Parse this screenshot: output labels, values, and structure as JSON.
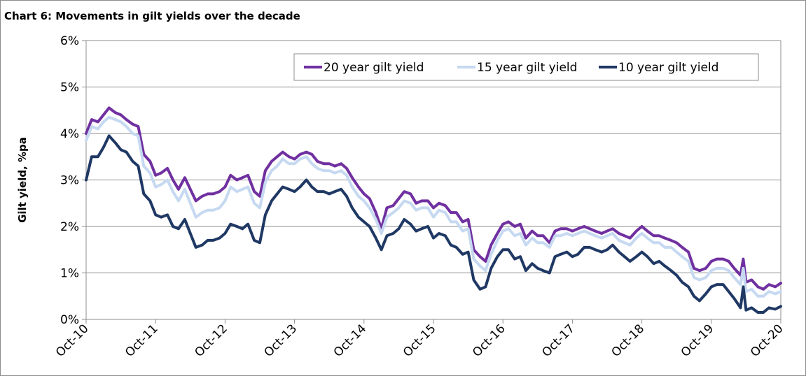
{
  "chart_data": {
    "type": "line",
    "title": "Chart 6: Movements in gilt yields over the decade",
    "xlabel": "",
    "ylabel": "Gilt yield, %pa",
    "ylim": [
      0,
      6
    ],
    "yticks": [
      "0%",
      "1%",
      "2%",
      "3%",
      "4%",
      "5%",
      "6%"
    ],
    "yticks_values": [
      0,
      1,
      2,
      3,
      4,
      5,
      6
    ],
    "xlim": [
      2010.75,
      2020.75
    ],
    "xticks": [
      "Oct-10",
      "Oct-11",
      "Oct-12",
      "Oct-13",
      "Oct-14",
      "Oct-15",
      "Oct-16",
      "Oct-17",
      "Oct-18",
      "Oct-19",
      "Oct-20"
    ],
    "xticks_values": [
      2010.75,
      2011.75,
      2012.75,
      2013.75,
      2014.75,
      2015.75,
      2016.75,
      2017.75,
      2018.75,
      2019.75,
      2020.75
    ],
    "grid": "horizontal",
    "legend_position": "top-right",
    "series": [
      {
        "name": "20 year gilt yield",
        "color": "#7030a0",
        "x": [
          2010.75,
          2010.83,
          2010.92,
          2011.0,
          2011.08,
          2011.17,
          2011.25,
          2011.33,
          2011.42,
          2011.5,
          2011.58,
          2011.67,
          2011.75,
          2011.83,
          2011.92,
          2012.0,
          2012.08,
          2012.17,
          2012.25,
          2012.33,
          2012.42,
          2012.5,
          2012.58,
          2012.67,
          2012.75,
          2012.83,
          2012.92,
          2013.0,
          2013.08,
          2013.17,
          2013.25,
          2013.33,
          2013.42,
          2013.5,
          2013.58,
          2013.67,
          2013.75,
          2013.83,
          2013.92,
          2014.0,
          2014.08,
          2014.17,
          2014.25,
          2014.33,
          2014.42,
          2014.5,
          2014.58,
          2014.67,
          2014.75,
          2014.83,
          2014.92,
          2015.0,
          2015.08,
          2015.17,
          2015.25,
          2015.33,
          2015.42,
          2015.5,
          2015.58,
          2015.67,
          2015.75,
          2015.83,
          2015.92,
          2016.0,
          2016.08,
          2016.17,
          2016.25,
          2016.33,
          2016.42,
          2016.5,
          2016.58,
          2016.67,
          2016.75,
          2016.83,
          2016.92,
          2017.0,
          2017.08,
          2017.17,
          2017.25,
          2017.33,
          2017.42,
          2017.5,
          2017.58,
          2017.67,
          2017.75,
          2017.83,
          2017.92,
          2018.0,
          2018.08,
          2018.17,
          2018.25,
          2018.33,
          2018.42,
          2018.5,
          2018.58,
          2018.67,
          2018.75,
          2018.83,
          2018.92,
          2019.0,
          2019.08,
          2019.17,
          2019.25,
          2019.33,
          2019.42,
          2019.5,
          2019.58,
          2019.67,
          2019.75,
          2019.83,
          2019.92,
          2020.0,
          2020.08,
          2020.17,
          2020.21,
          2020.25,
          2020.33,
          2020.42,
          2020.5,
          2020.58,
          2020.67,
          2020.75
        ],
        "values": [
          4.0,
          4.3,
          4.25,
          4.4,
          4.55,
          4.45,
          4.4,
          4.3,
          4.2,
          4.15,
          3.55,
          3.4,
          3.1,
          3.15,
          3.25,
          3.0,
          2.8,
          3.05,
          2.8,
          2.55,
          2.65,
          2.7,
          2.7,
          2.75,
          2.85,
          3.1,
          3.0,
          3.05,
          3.1,
          2.75,
          2.65,
          3.2,
          3.4,
          3.5,
          3.6,
          3.5,
          3.45,
          3.55,
          3.6,
          3.55,
          3.4,
          3.35,
          3.35,
          3.3,
          3.35,
          3.25,
          3.05,
          2.85,
          2.7,
          2.6,
          2.3,
          1.95,
          2.4,
          2.45,
          2.6,
          2.75,
          2.7,
          2.5,
          2.55,
          2.55,
          2.4,
          2.5,
          2.45,
          2.3,
          2.3,
          2.1,
          2.15,
          1.5,
          1.35,
          1.25,
          1.6,
          1.85,
          2.05,
          2.1,
          2.0,
          2.05,
          1.75,
          1.9,
          1.8,
          1.8,
          1.65,
          1.9,
          1.95,
          1.95,
          1.9,
          1.95,
          2.0,
          1.95,
          1.9,
          1.85,
          1.9,
          1.95,
          1.85,
          1.8,
          1.75,
          1.9,
          2.0,
          1.9,
          1.8,
          1.8,
          1.75,
          1.7,
          1.65,
          1.55,
          1.45,
          1.1,
          1.05,
          1.1,
          1.25,
          1.3,
          1.3,
          1.25,
          1.1,
          0.95,
          1.3,
          0.8,
          0.85,
          0.7,
          0.65,
          0.75,
          0.7,
          0.78
        ]
      },
      {
        "name": "15 year gilt yield",
        "color": "#c6d9f1",
        "x": [
          2010.75,
          2010.83,
          2010.92,
          2011.0,
          2011.08,
          2011.17,
          2011.25,
          2011.33,
          2011.42,
          2011.5,
          2011.58,
          2011.67,
          2011.75,
          2011.83,
          2011.92,
          2012.0,
          2012.08,
          2012.17,
          2012.25,
          2012.33,
          2012.42,
          2012.5,
          2012.58,
          2012.67,
          2012.75,
          2012.83,
          2012.92,
          2013.0,
          2013.08,
          2013.17,
          2013.25,
          2013.33,
          2013.42,
          2013.5,
          2013.58,
          2013.67,
          2013.75,
          2013.83,
          2013.92,
          2014.0,
          2014.08,
          2014.17,
          2014.25,
          2014.33,
          2014.42,
          2014.5,
          2014.58,
          2014.67,
          2014.75,
          2014.83,
          2014.92,
          2015.0,
          2015.08,
          2015.17,
          2015.25,
          2015.33,
          2015.42,
          2015.5,
          2015.58,
          2015.67,
          2015.75,
          2015.83,
          2015.92,
          2016.0,
          2016.08,
          2016.17,
          2016.25,
          2016.33,
          2016.42,
          2016.5,
          2016.58,
          2016.67,
          2016.75,
          2016.83,
          2016.92,
          2017.0,
          2017.08,
          2017.17,
          2017.25,
          2017.33,
          2017.42,
          2017.5,
          2017.58,
          2017.67,
          2017.75,
          2017.83,
          2017.92,
          2018.0,
          2018.08,
          2018.17,
          2018.25,
          2018.33,
          2018.42,
          2018.5,
          2018.58,
          2018.67,
          2018.75,
          2018.83,
          2018.92,
          2019.0,
          2019.08,
          2019.17,
          2019.25,
          2019.33,
          2019.42,
          2019.5,
          2019.58,
          2019.67,
          2019.75,
          2019.83,
          2019.92,
          2020.0,
          2020.08,
          2020.17,
          2020.21,
          2020.25,
          2020.33,
          2020.42,
          2020.5,
          2020.58,
          2020.67,
          2020.75
        ],
        "values": [
          3.85,
          4.15,
          4.1,
          4.25,
          4.35,
          4.3,
          4.25,
          4.15,
          4.0,
          3.95,
          3.3,
          3.15,
          2.85,
          2.9,
          3.0,
          2.75,
          2.55,
          2.8,
          2.5,
          2.2,
          2.3,
          2.35,
          2.35,
          2.4,
          2.55,
          2.85,
          2.75,
          2.8,
          2.85,
          2.5,
          2.4,
          2.95,
          3.2,
          3.3,
          3.45,
          3.35,
          3.35,
          3.45,
          3.5,
          3.35,
          3.25,
          3.2,
          3.2,
          3.15,
          3.2,
          3.1,
          2.85,
          2.65,
          2.55,
          2.4,
          2.15,
          1.85,
          2.2,
          2.3,
          2.4,
          2.55,
          2.5,
          2.35,
          2.4,
          2.4,
          2.2,
          2.35,
          2.3,
          2.1,
          2.1,
          1.9,
          1.95,
          1.3,
          1.15,
          1.05,
          1.4,
          1.7,
          1.9,
          1.95,
          1.8,
          1.85,
          1.6,
          1.75,
          1.65,
          1.65,
          1.55,
          1.8,
          1.8,
          1.85,
          1.8,
          1.85,
          1.9,
          1.85,
          1.8,
          1.75,
          1.8,
          1.85,
          1.7,
          1.65,
          1.6,
          1.75,
          1.85,
          1.75,
          1.65,
          1.65,
          1.55,
          1.55,
          1.45,
          1.35,
          1.25,
          0.9,
          0.85,
          0.9,
          1.05,
          1.1,
          1.1,
          1.05,
          0.9,
          0.75,
          1.1,
          0.6,
          0.65,
          0.5,
          0.5,
          0.6,
          0.55,
          0.6
        ]
      },
      {
        "name": "10 year gilt yield",
        "color": "#1f3864",
        "x": [
          2010.75,
          2010.83,
          2010.92,
          2011.0,
          2011.08,
          2011.17,
          2011.25,
          2011.33,
          2011.42,
          2011.5,
          2011.58,
          2011.67,
          2011.75,
          2011.83,
          2011.92,
          2012.0,
          2012.08,
          2012.17,
          2012.25,
          2012.33,
          2012.42,
          2012.5,
          2012.58,
          2012.67,
          2012.75,
          2012.83,
          2012.92,
          2013.0,
          2013.08,
          2013.17,
          2013.25,
          2013.33,
          2013.42,
          2013.5,
          2013.58,
          2013.67,
          2013.75,
          2013.83,
          2013.92,
          2014.0,
          2014.08,
          2014.17,
          2014.25,
          2014.33,
          2014.42,
          2014.5,
          2014.58,
          2014.67,
          2014.75,
          2014.83,
          2014.92,
          2015.0,
          2015.08,
          2015.17,
          2015.25,
          2015.33,
          2015.42,
          2015.5,
          2015.58,
          2015.67,
          2015.75,
          2015.83,
          2015.92,
          2016.0,
          2016.08,
          2016.17,
          2016.25,
          2016.33,
          2016.42,
          2016.5,
          2016.58,
          2016.67,
          2016.75,
          2016.83,
          2016.92,
          2017.0,
          2017.08,
          2017.17,
          2017.25,
          2017.33,
          2017.42,
          2017.5,
          2017.58,
          2017.67,
          2017.75,
          2017.83,
          2017.92,
          2018.0,
          2018.08,
          2018.17,
          2018.25,
          2018.33,
          2018.42,
          2018.5,
          2018.58,
          2018.67,
          2018.75,
          2018.83,
          2018.92,
          2019.0,
          2019.08,
          2019.17,
          2019.25,
          2019.33,
          2019.42,
          2019.5,
          2019.58,
          2019.67,
          2019.75,
          2019.83,
          2019.92,
          2020.0,
          2020.08,
          2020.17,
          2020.21,
          2020.25,
          2020.33,
          2020.42,
          2020.5,
          2020.58,
          2020.67,
          2020.75
        ],
        "values": [
          3.0,
          3.5,
          3.5,
          3.7,
          3.95,
          3.8,
          3.65,
          3.6,
          3.4,
          3.3,
          2.7,
          2.55,
          2.25,
          2.2,
          2.25,
          2.0,
          1.95,
          2.15,
          1.85,
          1.55,
          1.6,
          1.7,
          1.7,
          1.75,
          1.85,
          2.05,
          2.0,
          1.95,
          2.05,
          1.7,
          1.65,
          2.25,
          2.55,
          2.7,
          2.85,
          2.8,
          2.75,
          2.85,
          3.0,
          2.85,
          2.75,
          2.75,
          2.7,
          2.75,
          2.8,
          2.65,
          2.4,
          2.2,
          2.1,
          2.0,
          1.75,
          1.5,
          1.8,
          1.85,
          1.95,
          2.15,
          2.05,
          1.9,
          1.95,
          2.0,
          1.75,
          1.85,
          1.8,
          1.6,
          1.55,
          1.4,
          1.45,
          0.85,
          0.65,
          0.7,
          1.1,
          1.35,
          1.5,
          1.5,
          1.3,
          1.35,
          1.05,
          1.2,
          1.1,
          1.05,
          1.0,
          1.35,
          1.4,
          1.45,
          1.35,
          1.4,
          1.55,
          1.55,
          1.5,
          1.45,
          1.5,
          1.6,
          1.45,
          1.35,
          1.25,
          1.35,
          1.45,
          1.35,
          1.2,
          1.25,
          1.15,
          1.05,
          0.95,
          0.8,
          0.7,
          0.5,
          0.4,
          0.55,
          0.7,
          0.75,
          0.75,
          0.6,
          0.45,
          0.25,
          0.7,
          0.2,
          0.25,
          0.15,
          0.15,
          0.25,
          0.22,
          0.28
        ]
      }
    ]
  }
}
